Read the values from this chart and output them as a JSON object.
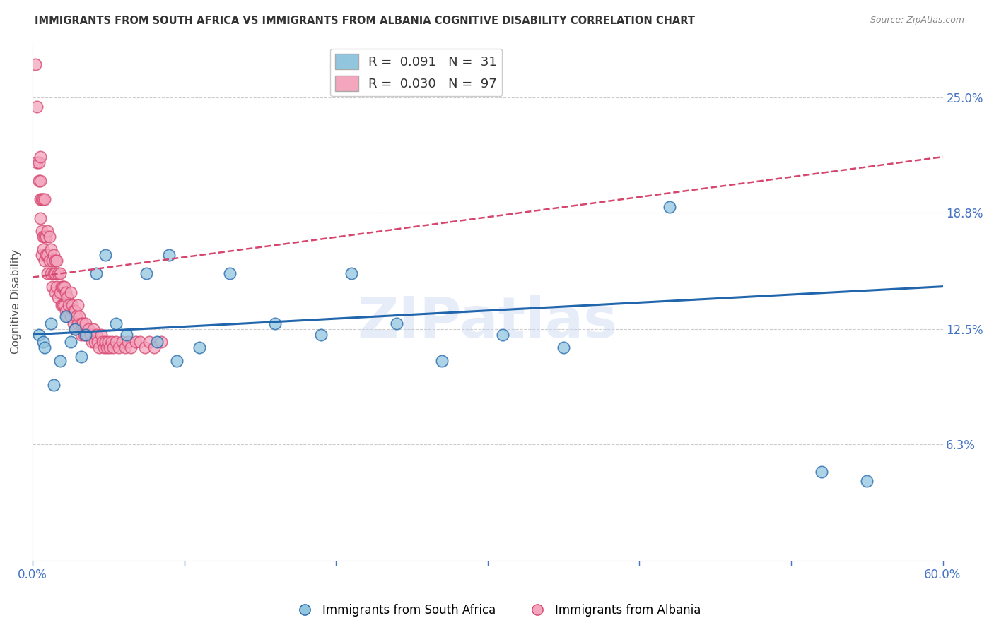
{
  "title": "IMMIGRANTS FROM SOUTH AFRICA VS IMMIGRANTS FROM ALBANIA COGNITIVE DISABILITY CORRELATION CHART",
  "source": "Source: ZipAtlas.com",
  "ylabel": "Cognitive Disability",
  "ytick_labels": [
    "25.0%",
    "18.8%",
    "12.5%",
    "6.3%"
  ],
  "ytick_values": [
    0.25,
    0.188,
    0.125,
    0.063
  ],
  "xlim": [
    0.0,
    0.6
  ],
  "ylim": [
    0.0,
    0.28
  ],
  "watermark": "ZIPatlas",
  "color_blue": "#92c5de",
  "color_pink": "#f4a6be",
  "trendline_blue": "#2166ac",
  "trendline_pink": "#d6456e",
  "south_africa_x": [
    0.004,
    0.007,
    0.008,
    0.012,
    0.014,
    0.018,
    0.022,
    0.025,
    0.028,
    0.032,
    0.035,
    0.042,
    0.048,
    0.055,
    0.062,
    0.075,
    0.082,
    0.09,
    0.095,
    0.11,
    0.13,
    0.16,
    0.19,
    0.21,
    0.24,
    0.27,
    0.31,
    0.35,
    0.42,
    0.52,
    0.55
  ],
  "south_africa_y": [
    0.122,
    0.118,
    0.115,
    0.128,
    0.095,
    0.108,
    0.132,
    0.118,
    0.125,
    0.11,
    0.122,
    0.155,
    0.165,
    0.128,
    0.122,
    0.155,
    0.118,
    0.165,
    0.108,
    0.115,
    0.155,
    0.128,
    0.122,
    0.155,
    0.128,
    0.108,
    0.122,
    0.115,
    0.191,
    0.048,
    0.043
  ],
  "albania_x": [
    0.002,
    0.003,
    0.003,
    0.004,
    0.004,
    0.005,
    0.005,
    0.005,
    0.005,
    0.006,
    0.006,
    0.006,
    0.007,
    0.007,
    0.007,
    0.008,
    0.008,
    0.008,
    0.009,
    0.009,
    0.01,
    0.01,
    0.01,
    0.011,
    0.011,
    0.012,
    0.012,
    0.013,
    0.013,
    0.014,
    0.014,
    0.015,
    0.015,
    0.015,
    0.016,
    0.016,
    0.017,
    0.017,
    0.018,
    0.018,
    0.019,
    0.019,
    0.02,
    0.02,
    0.021,
    0.021,
    0.022,
    0.022,
    0.023,
    0.023,
    0.024,
    0.025,
    0.025,
    0.026,
    0.027,
    0.027,
    0.028,
    0.028,
    0.029,
    0.03,
    0.03,
    0.031,
    0.032,
    0.032,
    0.033,
    0.034,
    0.035,
    0.036,
    0.037,
    0.038,
    0.039,
    0.04,
    0.041,
    0.042,
    0.043,
    0.044,
    0.045,
    0.046,
    0.047,
    0.048,
    0.049,
    0.05,
    0.051,
    0.052,
    0.053,
    0.055,
    0.057,
    0.059,
    0.061,
    0.063,
    0.065,
    0.068,
    0.071,
    0.074,
    0.077,
    0.08,
    0.085
  ],
  "albania_y": [
    0.268,
    0.245,
    0.215,
    0.205,
    0.215,
    0.205,
    0.195,
    0.218,
    0.185,
    0.195,
    0.178,
    0.165,
    0.195,
    0.175,
    0.168,
    0.195,
    0.175,
    0.162,
    0.175,
    0.165,
    0.178,
    0.165,
    0.155,
    0.175,
    0.162,
    0.168,
    0.155,
    0.162,
    0.148,
    0.165,
    0.155,
    0.162,
    0.155,
    0.145,
    0.162,
    0.148,
    0.155,
    0.142,
    0.155,
    0.145,
    0.148,
    0.138,
    0.148,
    0.138,
    0.148,
    0.138,
    0.145,
    0.135,
    0.142,
    0.132,
    0.138,
    0.145,
    0.132,
    0.138,
    0.135,
    0.128,
    0.135,
    0.125,
    0.132,
    0.138,
    0.128,
    0.132,
    0.128,
    0.122,
    0.128,
    0.122,
    0.128,
    0.122,
    0.125,
    0.122,
    0.118,
    0.125,
    0.118,
    0.122,
    0.118,
    0.115,
    0.122,
    0.118,
    0.115,
    0.118,
    0.115,
    0.118,
    0.115,
    0.118,
    0.115,
    0.118,
    0.115,
    0.118,
    0.115,
    0.118,
    0.115,
    0.118,
    0.118,
    0.115,
    0.118,
    0.115,
    0.118
  ],
  "trendline_blue_x0": 0.0,
  "trendline_blue_y0": 0.122,
  "trendline_blue_x1": 0.6,
  "trendline_blue_y1": 0.148,
  "trendline_pink_x0": 0.0,
  "trendline_pink_y0": 0.153,
  "trendline_pink_x1": 0.6,
  "trendline_pink_y1": 0.218
}
